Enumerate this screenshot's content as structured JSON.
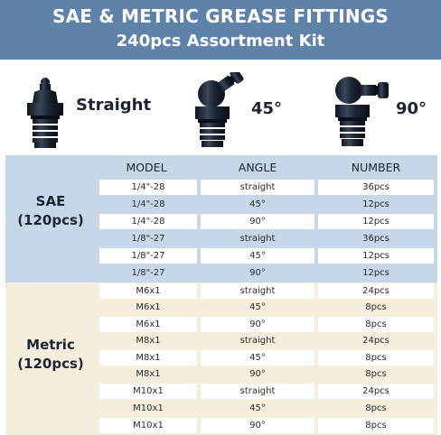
{
  "header": {
    "title": "SAE & METRIC GREASE FITTINGS",
    "subtitle": "240pcs Assortment Kit"
  },
  "fittings": [
    {
      "label": "Straight",
      "icon": "straight-fitting-icon"
    },
    {
      "label": "45°",
      "icon": "45-degree-fitting-icon"
    },
    {
      "label": "90°",
      "icon": "90-degree-fitting-icon"
    }
  ],
  "table": {
    "columns": [
      "MODEL",
      "ANGLE",
      "NUMBER"
    ],
    "groups": [
      {
        "label_line1": "SAE",
        "label_line2": "(120pcs)",
        "rows": [
          {
            "model": "1/4\"-28",
            "angle": "straight",
            "number": "36pcs"
          },
          {
            "model": "1/4\"-28",
            "angle": "45°",
            "number": "12pcs"
          },
          {
            "model": "1/4\"-28",
            "angle": "90°",
            "number": "12pcs"
          },
          {
            "model": "1/8\"-27",
            "angle": "straight",
            "number": "36pcs"
          },
          {
            "model": "1/8\"-27",
            "angle": "45°",
            "number": "12pcs"
          },
          {
            "model": "1/8\"-27",
            "angle": "90°",
            "number": "12pcs"
          }
        ]
      },
      {
        "label_line1": "Metric",
        "label_line2": "(120pcs)",
        "rows": [
          {
            "model": "M6x1",
            "angle": "straight",
            "number": "24pcs"
          },
          {
            "model": "M6x1",
            "angle": "45°",
            "number": "8pcs"
          },
          {
            "model": "M6x1",
            "angle": "90°",
            "number": "8pcs"
          },
          {
            "model": "M8x1",
            "angle": "straight",
            "number": "24pcs"
          },
          {
            "model": "M8x1",
            "angle": "45°",
            "number": "8pcs"
          },
          {
            "model": "M8x1",
            "angle": "90°",
            "number": "8pcs"
          },
          {
            "model": "M10x1",
            "angle": "straight",
            "number": "24pcs"
          },
          {
            "model": "M10x1",
            "angle": "45°",
            "number": "8pcs"
          },
          {
            "model": "M10x1",
            "angle": "90°",
            "number": "8pcs"
          }
        ]
      }
    ]
  },
  "colors": {
    "header_bg": "#5f82a8",
    "sae_bg": "#c7d7e9",
    "metric_bg": "#f6eedd",
    "fitting": "#1b2433"
  }
}
